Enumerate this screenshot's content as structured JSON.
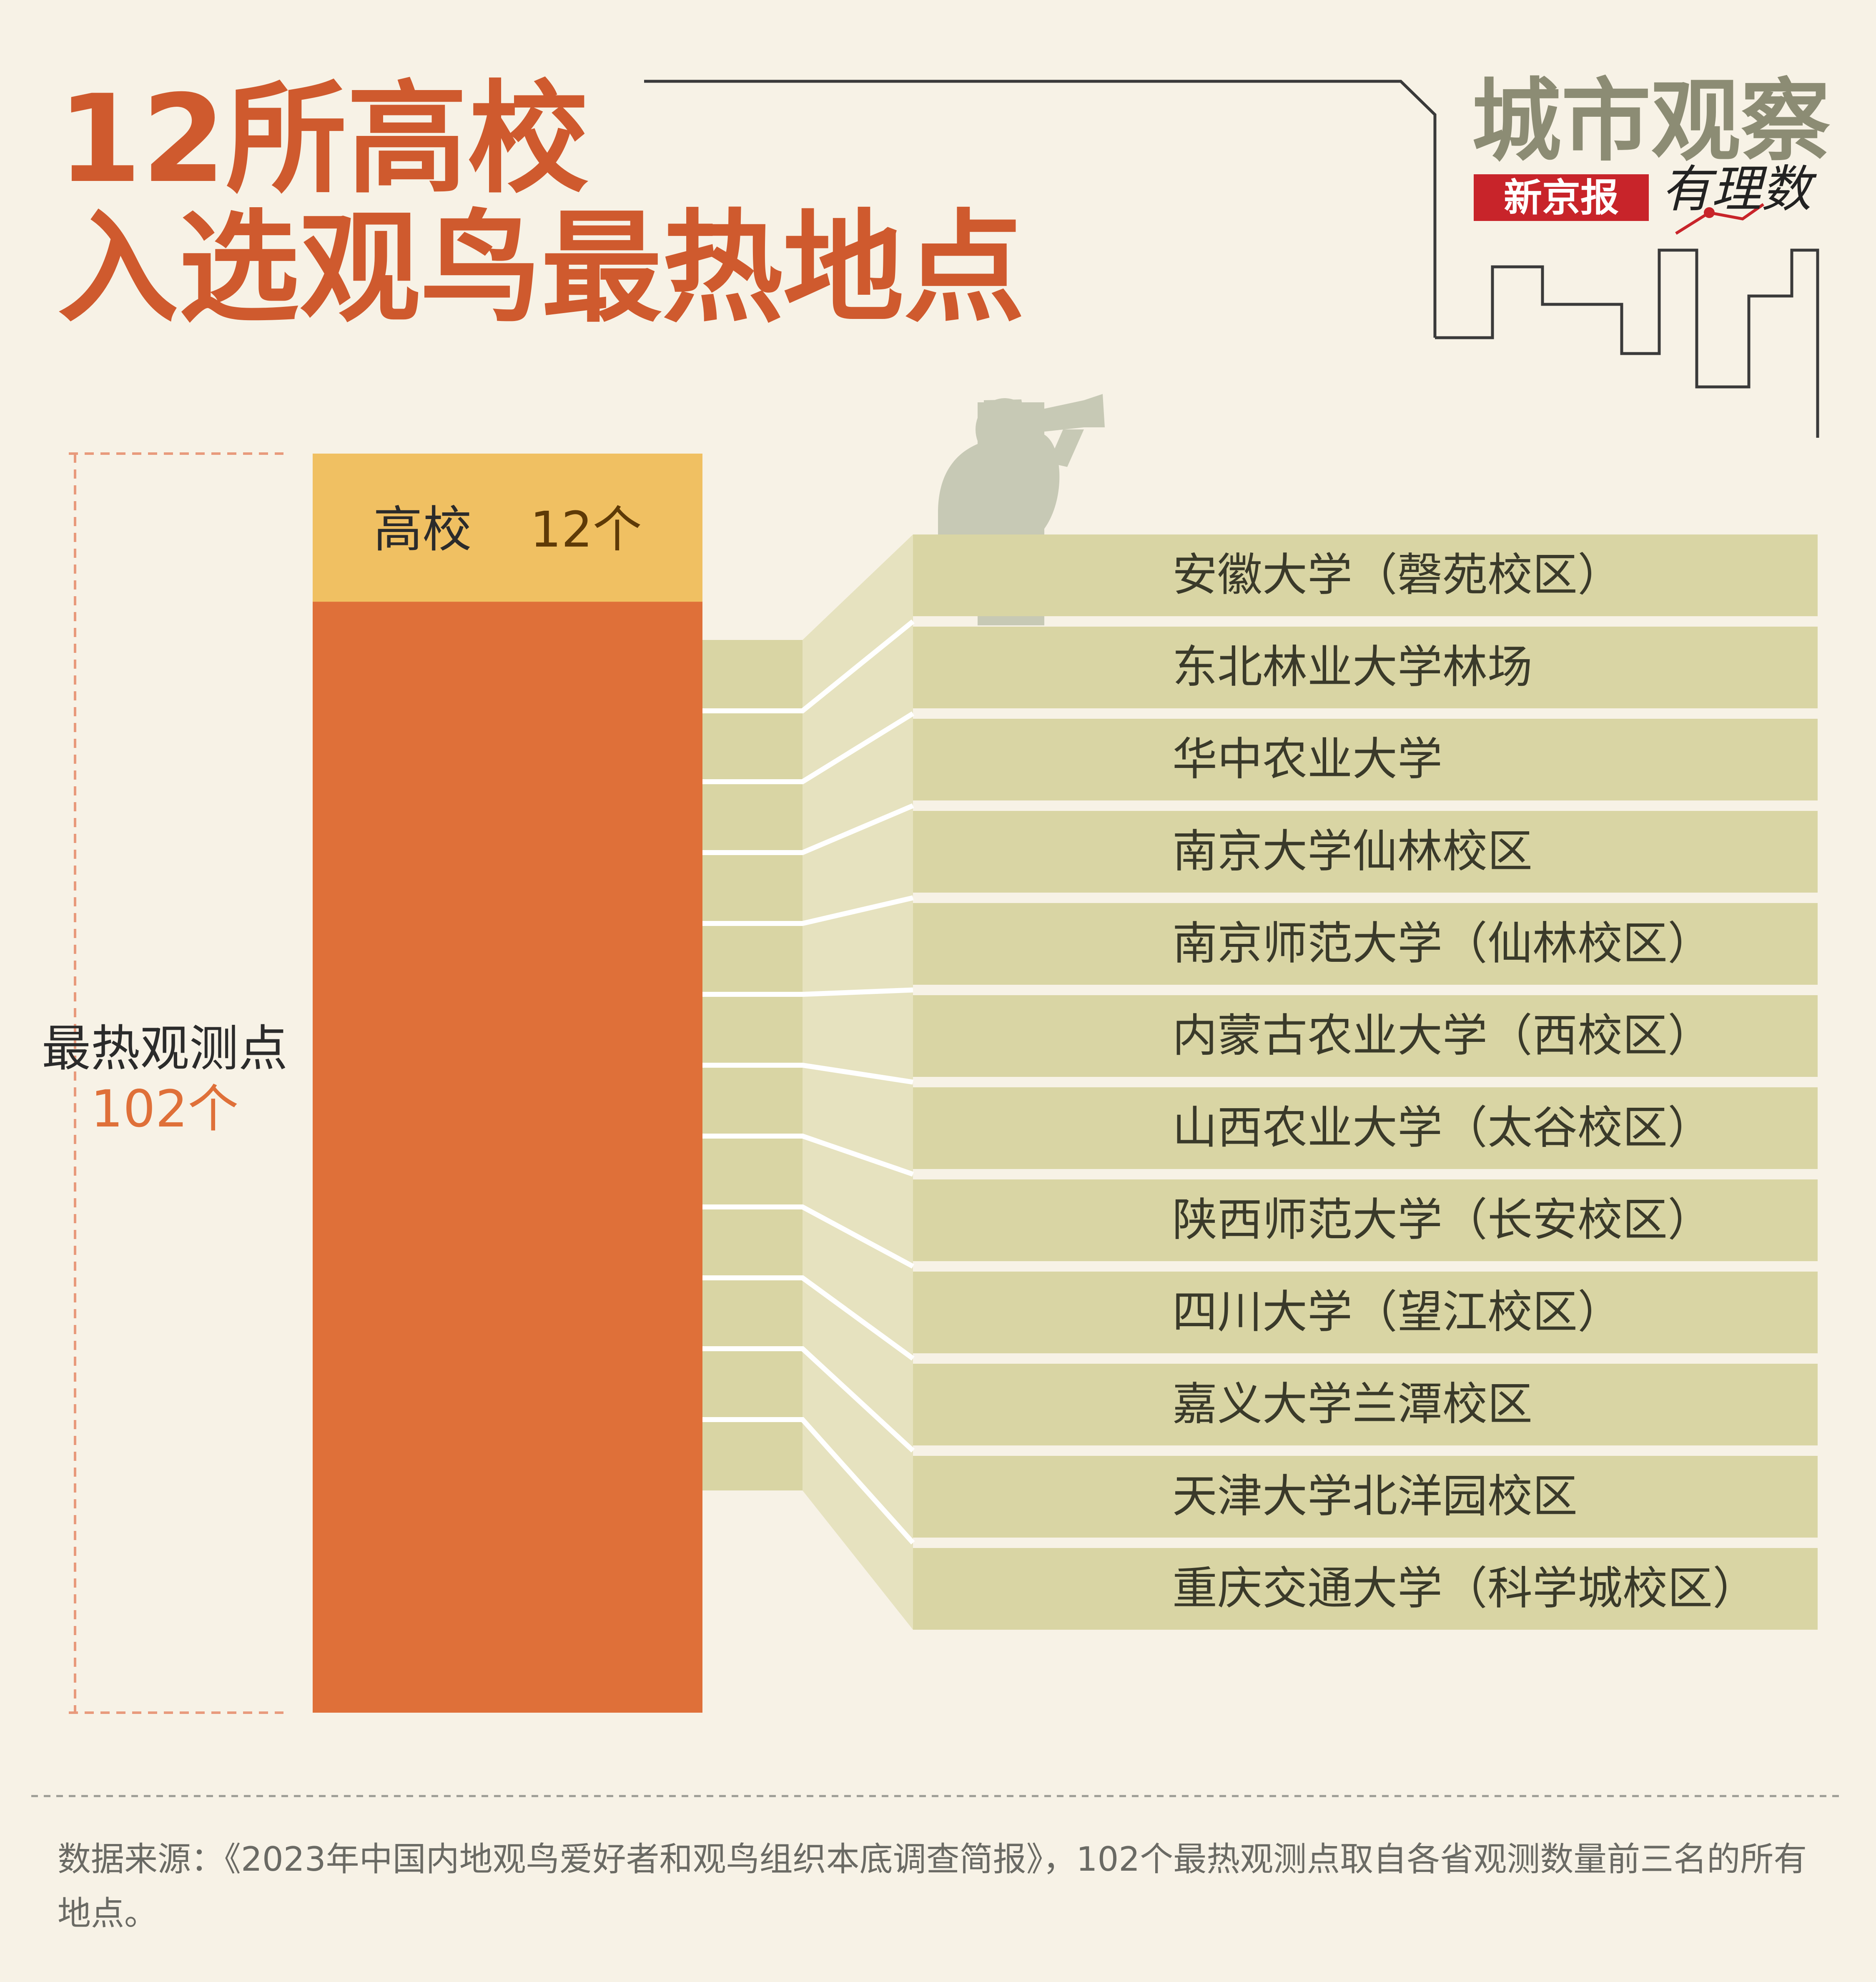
{
  "title": {
    "line1": "12所高校",
    "line2": "入选观鸟最热地点"
  },
  "brand": {
    "column": "城市观察",
    "newspaper": "新京报",
    "data_label": "有理数"
  },
  "colors": {
    "background": "#f7f2e6",
    "title": "#cf5a2e",
    "bar_total": "#df7039",
    "bar_highlight": "#f0c062",
    "item_fill": "#d9d5a4",
    "connector_fill": "#e6e2bf",
    "silhouette": "#c7c9b5"
  },
  "chart_data": {
    "type": "bar",
    "total": {
      "label": "最热观测点",
      "value": 102,
      "value_label": "102个"
    },
    "highlight": {
      "label": "高校",
      "value": 12,
      "value_label": "12个"
    },
    "items": [
      "安徽大学（磬苑校区）",
      "东北林业大学林场",
      "华中农业大学",
      "南京大学仙林校区",
      "南京师范大学（仙林校区）",
      "内蒙古农业大学（西校区）",
      "山西农业大学（太谷校区）",
      "陕西师范大学（长安校区）",
      "四川大学（望江校区）",
      "嘉义大学兰潭校区",
      "天津大学北洋园校区",
      "重庆交通大学（科学城校区）"
    ]
  },
  "source": "数据来源：《2023年中国内地观鸟爱好者和观鸟组织本底调查简报》，102个最热观测点取自各省观测数量前三名的所有地点。"
}
